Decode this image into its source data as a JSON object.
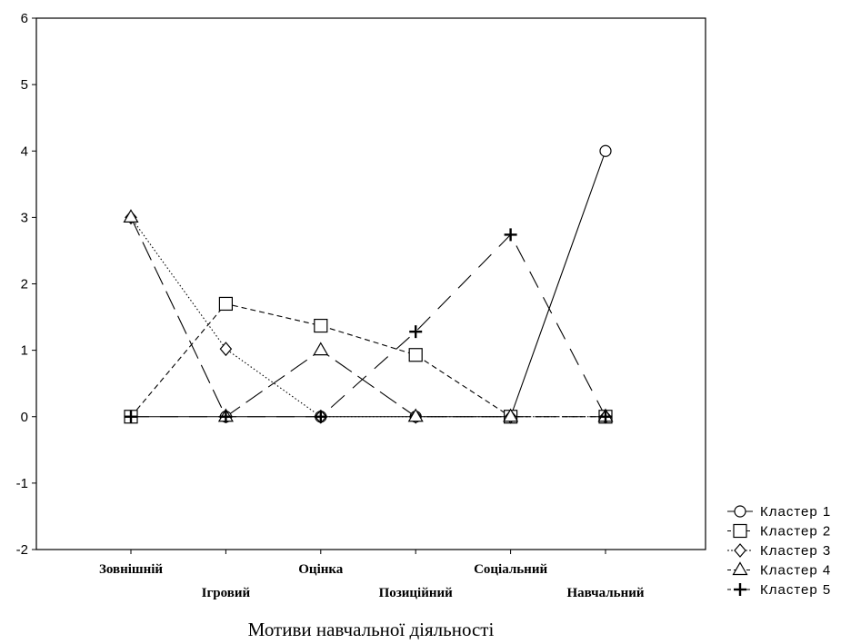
{
  "chart_data": {
    "type": "line",
    "title": "",
    "xlabel": "Мотиви навчальної діяльності",
    "ylabel": "",
    "categories": [
      "Зовнішній",
      "Ігровий",
      "Оцінка",
      "Позиційний",
      "Соціальний",
      "Навчальний"
    ],
    "ylim": [
      -2,
      6
    ],
    "yticks": [
      -2,
      -1,
      0,
      1,
      2,
      3,
      4,
      5,
      6
    ],
    "grid": true,
    "legend_position": "bottom-right",
    "series": [
      {
        "name": "Кластер 1",
        "marker": "circle",
        "dash": "solid",
        "values": [
          0,
          0,
          0,
          0,
          0,
          4
        ]
      },
      {
        "name": "Кластер 2",
        "marker": "square",
        "dash": "dashed",
        "values": [
          0,
          1.7,
          1.37,
          0.93,
          0,
          0
        ]
      },
      {
        "name": "Кластер 3",
        "marker": "diamond",
        "dash": "dotted",
        "values": [
          3,
          1.02,
          0,
          0,
          0,
          0
        ]
      },
      {
        "name": "Кластер 4",
        "marker": "triangle",
        "dash": "long-dash",
        "values": [
          3,
          0,
          1,
          0,
          0,
          0
        ]
      },
      {
        "name": "Кластер 5",
        "marker": "plus",
        "dash": "dash-gap",
        "values": [
          0,
          0,
          0,
          1.28,
          2.74,
          0
        ]
      }
    ]
  }
}
